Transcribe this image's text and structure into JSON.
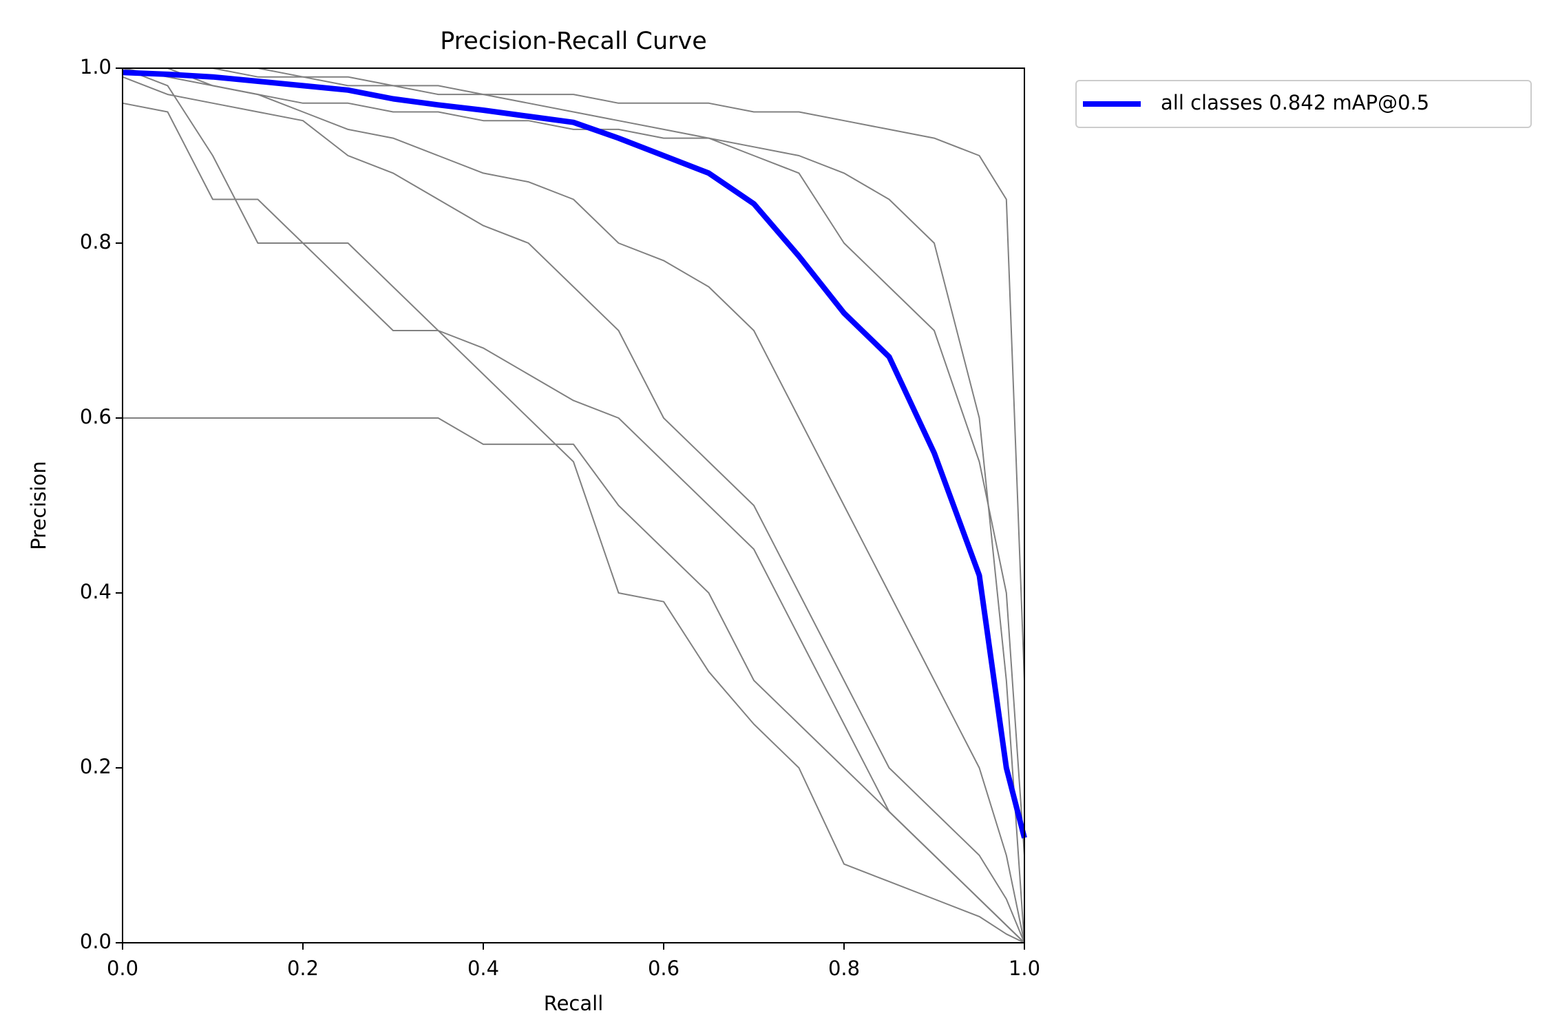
{
  "chart_data": {
    "type": "line",
    "title": "Precision-Recall Curve",
    "x_label": "Recall",
    "y_label": "Precision",
    "x": [
      0,
      0.05,
      0.1,
      0.15,
      0.2,
      0.25,
      0.3,
      0.35,
      0.4,
      0.45,
      0.5,
      0.55,
      0.6,
      0.65,
      0.7,
      0.75,
      0.8,
      0.85,
      0.9,
      0.95,
      0.98,
      1.0
    ],
    "series": [
      {
        "color": "#808080",
        "values": [
          1,
          1,
          0.98,
          0.97,
          0.96,
          0.96,
          0.95,
          0.95,
          0.94,
          0.94,
          0.93,
          0.93,
          0.92,
          0.92,
          0.91,
          0.9,
          0.88,
          0.85,
          0.8,
          0.6,
          0.3,
          0
        ]
      },
      {
        "color": "#808080",
        "values": [
          0.96,
          0.95,
          0.85,
          0.85,
          0.8,
          0.75,
          0.7,
          0.7,
          0.68,
          0.65,
          0.62,
          0.6,
          0.55,
          0.5,
          0.45,
          0.35,
          0.25,
          0.15,
          0.1,
          0.05,
          0.02,
          0
        ]
      },
      {
        "color": "#808080",
        "values": [
          0.6,
          0.6,
          0.6,
          0.6,
          0.6,
          0.6,
          0.6,
          0.6,
          0.57,
          0.57,
          0.57,
          0.5,
          0.45,
          0.4,
          0.3,
          0.25,
          0.2,
          0.15,
          0.1,
          0.05,
          0.02,
          0
        ]
      },
      {
        "color": "#808080",
        "values": [
          1,
          0.98,
          0.9,
          0.8,
          0.8,
          0.8,
          0.75,
          0.7,
          0.65,
          0.6,
          0.55,
          0.4,
          0.39,
          0.31,
          0.25,
          0.2,
          0.09,
          0.07,
          0.05,
          0.03,
          0.01,
          0
        ]
      },
      {
        "color": "#808080",
        "values": [
          1,
          1,
          1,
          1,
          0.99,
          0.99,
          0.98,
          0.98,
          0.97,
          0.97,
          0.97,
          0.96,
          0.96,
          0.96,
          0.95,
          0.95,
          0.94,
          0.93,
          0.92,
          0.9,
          0.85,
          0.3
        ]
      },
      {
        "color": "#808080",
        "values": [
          0.99,
          0.97,
          0.96,
          0.95,
          0.94,
          0.9,
          0.88,
          0.85,
          0.82,
          0.8,
          0.75,
          0.7,
          0.6,
          0.55,
          0.5,
          0.4,
          0.3,
          0.2,
          0.15,
          0.1,
          0.05,
          0
        ]
      },
      {
        "color": "#808080",
        "values": [
          1,
          0.99,
          0.98,
          0.97,
          0.95,
          0.93,
          0.92,
          0.9,
          0.88,
          0.87,
          0.85,
          0.8,
          0.78,
          0.75,
          0.7,
          0.6,
          0.5,
          0.4,
          0.3,
          0.2,
          0.1,
          0
        ]
      },
      {
        "color": "#808080",
        "values": [
          1,
          1,
          1,
          0.99,
          0.99,
          0.98,
          0.98,
          0.97,
          0.97,
          0.96,
          0.95,
          0.94,
          0.93,
          0.92,
          0.9,
          0.88,
          0.8,
          0.75,
          0.7,
          0.55,
          0.4,
          0.1
        ]
      },
      {
        "name": "all classes 0.842 mAP@0.5",
        "color": "#0000ff",
        "values": [
          0.995,
          0.993,
          0.99,
          0.985,
          0.98,
          0.975,
          0.965,
          0.958,
          0.952,
          0.945,
          0.938,
          0.92,
          0.9,
          0.88,
          0.845,
          0.785,
          0.72,
          0.67,
          0.56,
          0.42,
          0.2,
          0.12
        ]
      }
    ],
    "xlim": [
      0,
      1
    ],
    "ylim": [
      0,
      1
    ],
    "xticks": [
      {
        "value": 0,
        "label": "0.0"
      },
      0.2,
      0.4,
      0.6,
      0.8,
      {
        "value": 1,
        "label": "1.0"
      }
    ],
    "yticks": [
      {
        "value": 0,
        "label": "0.0"
      },
      0.2,
      0.4,
      0.6,
      0.8,
      {
        "value": 1,
        "label": "1.0"
      }
    ],
    "grid": false,
    "legend": "outside upper right"
  }
}
